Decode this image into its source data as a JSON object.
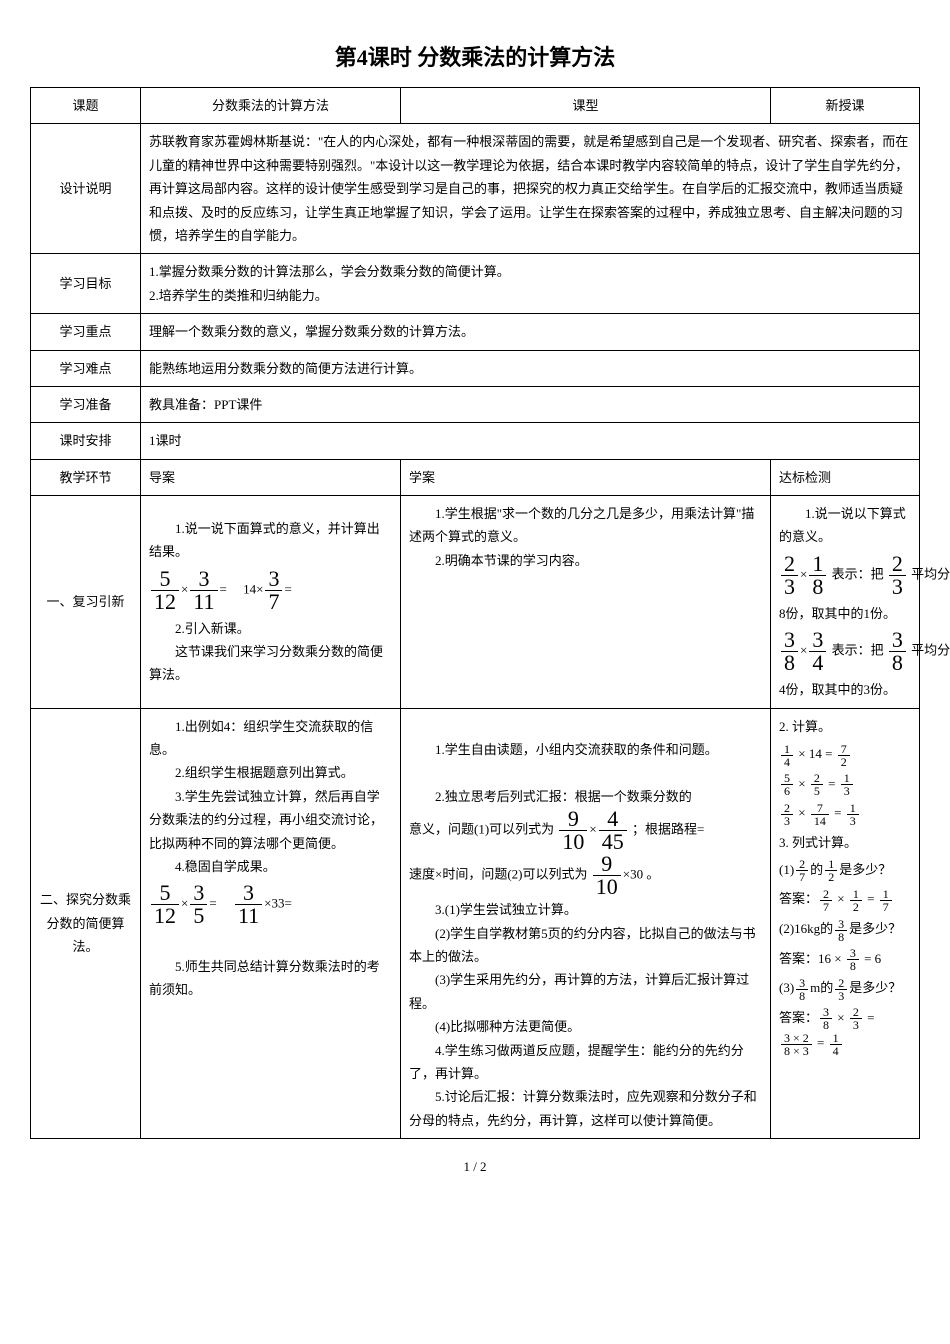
{
  "title": "第4课时 分数乘法的计算方法",
  "header_row": {
    "label1": "课题",
    "value1": "分数乘法的计算方法",
    "label2": "课型",
    "value2": "新授课"
  },
  "rows": {
    "design": {
      "label": "设计说明",
      "content": "苏联教育家苏霍姆林斯基说：\"在人的内心深处，都有一种根深蒂固的需要，就是希望感到自己是一个发现者、研究者、探索者，而在儿童的精神世界中这种需要特别强烈。\"本设计以这一教学理论为依据，结合本课时教学内容较简单的特点，设计了学生自学先约分，再计算这局部内容。这样的设计使学生感受到学习是自己的事，把探究的权力真正交给学生。在自学后的汇报交流中，教师适当质疑和点拨、及时的反应练习，让学生真正地掌握了知识，学会了运用。让学生在探索答案的过程中，养成独立思考、自主解决问题的习惯，培养学生的自学能力。"
    },
    "objective": {
      "label": "学习目标",
      "line1": "1.掌握分数乘分数的计算法那么，学会分数乘分数的简便计算。",
      "line2": "2.培养学生的类推和归纳能力。"
    },
    "keypoint": {
      "label": "学习重点",
      "content": "理解一个数乘分数的意义，掌握分数乘分数的计算方法。"
    },
    "difficulty": {
      "label": "学习难点",
      "content": "能熟练地运用分数乘分数的简便方法进行计算。"
    },
    "prep": {
      "label": "学习准备",
      "content": "教具准备：PPT课件"
    },
    "schedule": {
      "label": "课时安排",
      "content": "1课时"
    },
    "teaching_header": {
      "label": "教学环节",
      "col2": "导案",
      "col3": "学案",
      "col4": "达标检测"
    },
    "section1": {
      "label": "一、复习引新",
      "daoAn": {
        "p1": "　　1.说一说下面算式的意义，并计算出结果。",
        "p2": "　　2.引入新课。",
        "p3": "　　这节课我们来学习分数乘分数的简便算法。"
      },
      "xueAn": {
        "p1": "　　1.学生根据\"求一个数的几分之几是多少，用乘法计算\"描述两个算式的意义。",
        "p2": "　　2.明确本节课的学习内容。"
      },
      "dabiao": {
        "p1": "　　1.说一说以下算式的意义。",
        "p2_suffix": "表示：把",
        "p2_tail": "平均分成",
        "p3": "8份，取其中的1份。",
        "p4_suffix": "表示：把",
        "p4_tail": "平均分成",
        "p5": "4份，取其中的3份。"
      }
    },
    "section2": {
      "label": "二、探究分数乘分数的简便算法。",
      "daoAn": {
        "p1": "　　1.出例如4：组织学生交流获取的信息。",
        "p2": "　　2.组织学生根据题意列出算式。",
        "p3": "　　3.学生先尝试独立计算，然后再自学分数乘法的约分过程，再小组交流讨论，比拟两种不同的算法哪个更简便。",
        "p4": "　　4.稳固自学成果。",
        "p5": "　　5.师生共同总结计算分数乘法时的考前须知。"
      },
      "xueAn": {
        "p1": "　　1.学生自由读题，小组内交流获取的条件和问题。",
        "p2": "　　2.独立思考后列式汇报：根据一个数乘分数的",
        "p2b": "意义，问题(1)可以列式为",
        "p2c": "；根据路程=",
        "p3a": "速度×时间，问题(2)可以列式为",
        "p3b": "。",
        "p4": "　　3.(1)学生尝试独立计算。",
        "p5": "　　(2)学生自学教材第5页的约分内容，比拟自己的做法与书本上的做法。",
        "p6": "　　(3)学生采用先约分，再计算的方法，计算后汇报计算过程。",
        "p7": "　　(4)比拟哪种方法更简便。",
        "p8": "　　4.学生练习做两道反应题，提醒学生：能约分的先约分了，再计算。",
        "p9": "　　5.讨论后汇报：计算分数乘法时，应先观察和分数分子和分母的特点，先约分，再计算，这样可以使计算简便。"
      },
      "dabiao": {
        "p1": "2. 计算。",
        "p2": "3. 列式计算。",
        "q1_prefix": "(1)",
        "q1_mid": "的",
        "q1_suffix": "是多少？",
        "a_label": "答案：",
        "q2_prefix": "(2)16kg的",
        "q2_suffix": "是多少？",
        "a2_prefix": "答案：16 ×",
        "a2_suffix": "= 6",
        "q3_prefix": "(3)",
        "q3_mid": "m的",
        "q3_suffix": "是多少？"
      }
    }
  },
  "fractions": {
    "f5_12": {
      "num": "5",
      "den": "12"
    },
    "f3_11": {
      "num": "3",
      "den": "11"
    },
    "f3_7": {
      "num": "3",
      "den": "7"
    },
    "f2_3": {
      "num": "2",
      "den": "3"
    },
    "f1_8": {
      "num": "1",
      "den": "8"
    },
    "f3_8": {
      "num": "3",
      "den": "8"
    },
    "f3_4": {
      "num": "3",
      "den": "4"
    },
    "f9_10": {
      "num": "9",
      "den": "10"
    },
    "f4_45": {
      "num": "4",
      "den": "45"
    },
    "f3_5": {
      "num": "3",
      "den": "5"
    },
    "f1_4": {
      "num": "1",
      "den": "4"
    },
    "f7_2": {
      "num": "7",
      "den": "2"
    },
    "f5_6": {
      "num": "5",
      "den": "6"
    },
    "f2_5": {
      "num": "2",
      "den": "5"
    },
    "f1_3": {
      "num": "1",
      "den": "3"
    },
    "f7_14": {
      "num": "7",
      "den": "14"
    },
    "f2_7": {
      "num": "2",
      "den": "7"
    },
    "f1_2": {
      "num": "1",
      "den": "2"
    },
    "f1_7": {
      "num": "1",
      "den": "7"
    }
  },
  "constants": {
    "times": "×",
    "eq": "=",
    "eq_sp": "=　",
    "fourteen": "14",
    "thirty": "30",
    "thirty_three": "33"
  },
  "page_num": "1 / 2"
}
